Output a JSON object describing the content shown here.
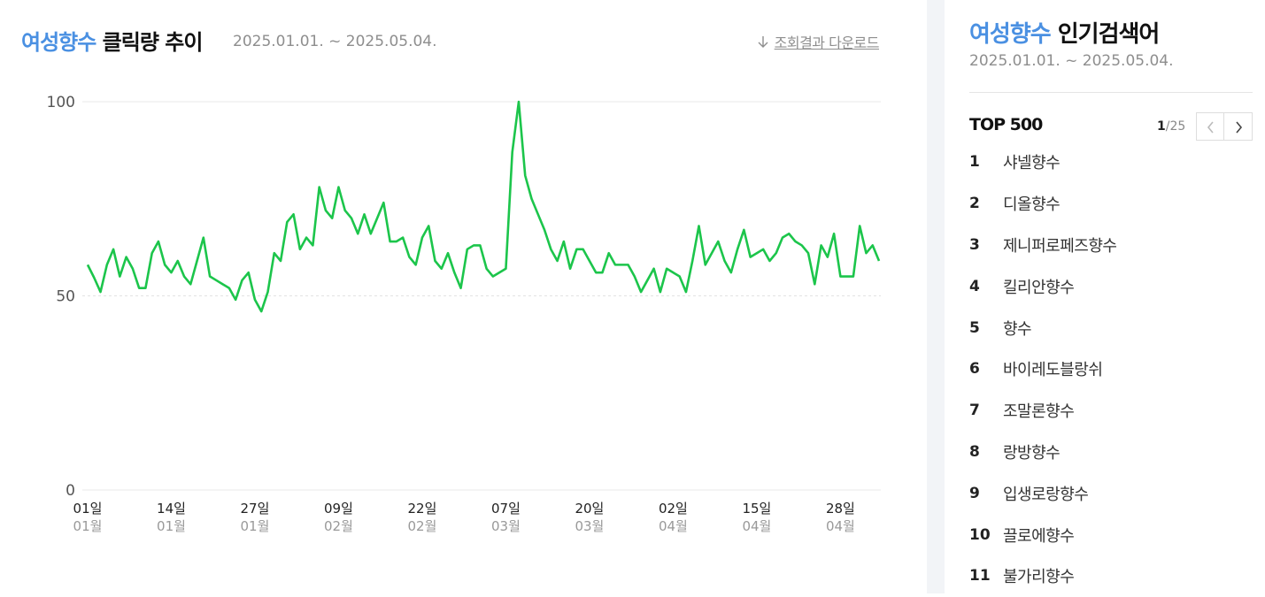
{
  "chart_section": {
    "title_keyword": "여성향수",
    "title_suffix": " 클릭량 추이",
    "period": "2025.01.01. ~ 2025.05.04.",
    "download_label": "조회결과 다운로드"
  },
  "chart_data": {
    "type": "line",
    "title": "여성향수 클릭량 추이",
    "ylim": [
      0,
      100
    ],
    "yticks": [
      "0",
      "50",
      "100"
    ],
    "grid": true,
    "color": "#1cc54b",
    "x_ticks": [
      {
        "day": "01일",
        "month": "01월",
        "index": 0
      },
      {
        "day": "14일",
        "month": "01월",
        "index": 13
      },
      {
        "day": "27일",
        "month": "01월",
        "index": 26
      },
      {
        "day": "09일",
        "month": "02월",
        "index": 39
      },
      {
        "day": "22일",
        "month": "02월",
        "index": 52
      },
      {
        "day": "07일",
        "month": "03월",
        "index": 65
      },
      {
        "day": "20일",
        "month": "03월",
        "index": 78
      },
      {
        "day": "02일",
        "month": "04월",
        "index": 91
      },
      {
        "day": "15일",
        "month": "04월",
        "index": 104
      },
      {
        "day": "28일",
        "month": "04월",
        "index": 117
      }
    ],
    "x_start": "2025-01-01",
    "x_end": "2025-05-04",
    "values": [
      58,
      54.7,
      51,
      58,
      62,
      55,
      60,
      57,
      52,
      52,
      61,
      64,
      58,
      56,
      59,
      55,
      53,
      59,
      65,
      55,
      54,
      53,
      52,
      49,
      54,
      56,
      49,
      46,
      51,
      61,
      59,
      69,
      71,
      62,
      65,
      63,
      78,
      72,
      70,
      78,
      72,
      70,
      66,
      71,
      66,
      70,
      74,
      64,
      64,
      65,
      60,
      58,
      65,
      68,
      59,
      57,
      61,
      56,
      52,
      62,
      63,
      63,
      57,
      55,
      56,
      57,
      87,
      100,
      81,
      75,
      71,
      67,
      62,
      59,
      64,
      57,
      62,
      62,
      59,
      56,
      56,
      61,
      58,
      58,
      58,
      55,
      51,
      54,
      57,
      51,
      57,
      56,
      55,
      51,
      59,
      68,
      58,
      61,
      64,
      59,
      56,
      62,
      67,
      60,
      61,
      62,
      59,
      61,
      65,
      66,
      64,
      63,
      61,
      53,
      63,
      60,
      66,
      55,
      55,
      55,
      68,
      61,
      63,
      59
    ]
  },
  "sidebar": {
    "title_keyword": "여성향수",
    "title_suffix": " 인기검색어",
    "period": "2025.01.01. ~ 2025.05.04.",
    "top_label": "TOP 500",
    "page_current": "1",
    "page_total": "/25",
    "items": [
      {
        "rank": "1",
        "keyword": "샤넬향수"
      },
      {
        "rank": "2",
        "keyword": "디올향수"
      },
      {
        "rank": "3",
        "keyword": "제니퍼로페즈향수"
      },
      {
        "rank": "4",
        "keyword": "킬리안향수"
      },
      {
        "rank": "5",
        "keyword": "향수"
      },
      {
        "rank": "6",
        "keyword": "바이레도블랑쉬"
      },
      {
        "rank": "7",
        "keyword": "조말론향수"
      },
      {
        "rank": "8",
        "keyword": "랑방향수"
      },
      {
        "rank": "9",
        "keyword": "입생로랑향수"
      },
      {
        "rank": "10",
        "keyword": "끌로에향수"
      },
      {
        "rank": "11",
        "keyword": "불가리향수"
      }
    ]
  }
}
